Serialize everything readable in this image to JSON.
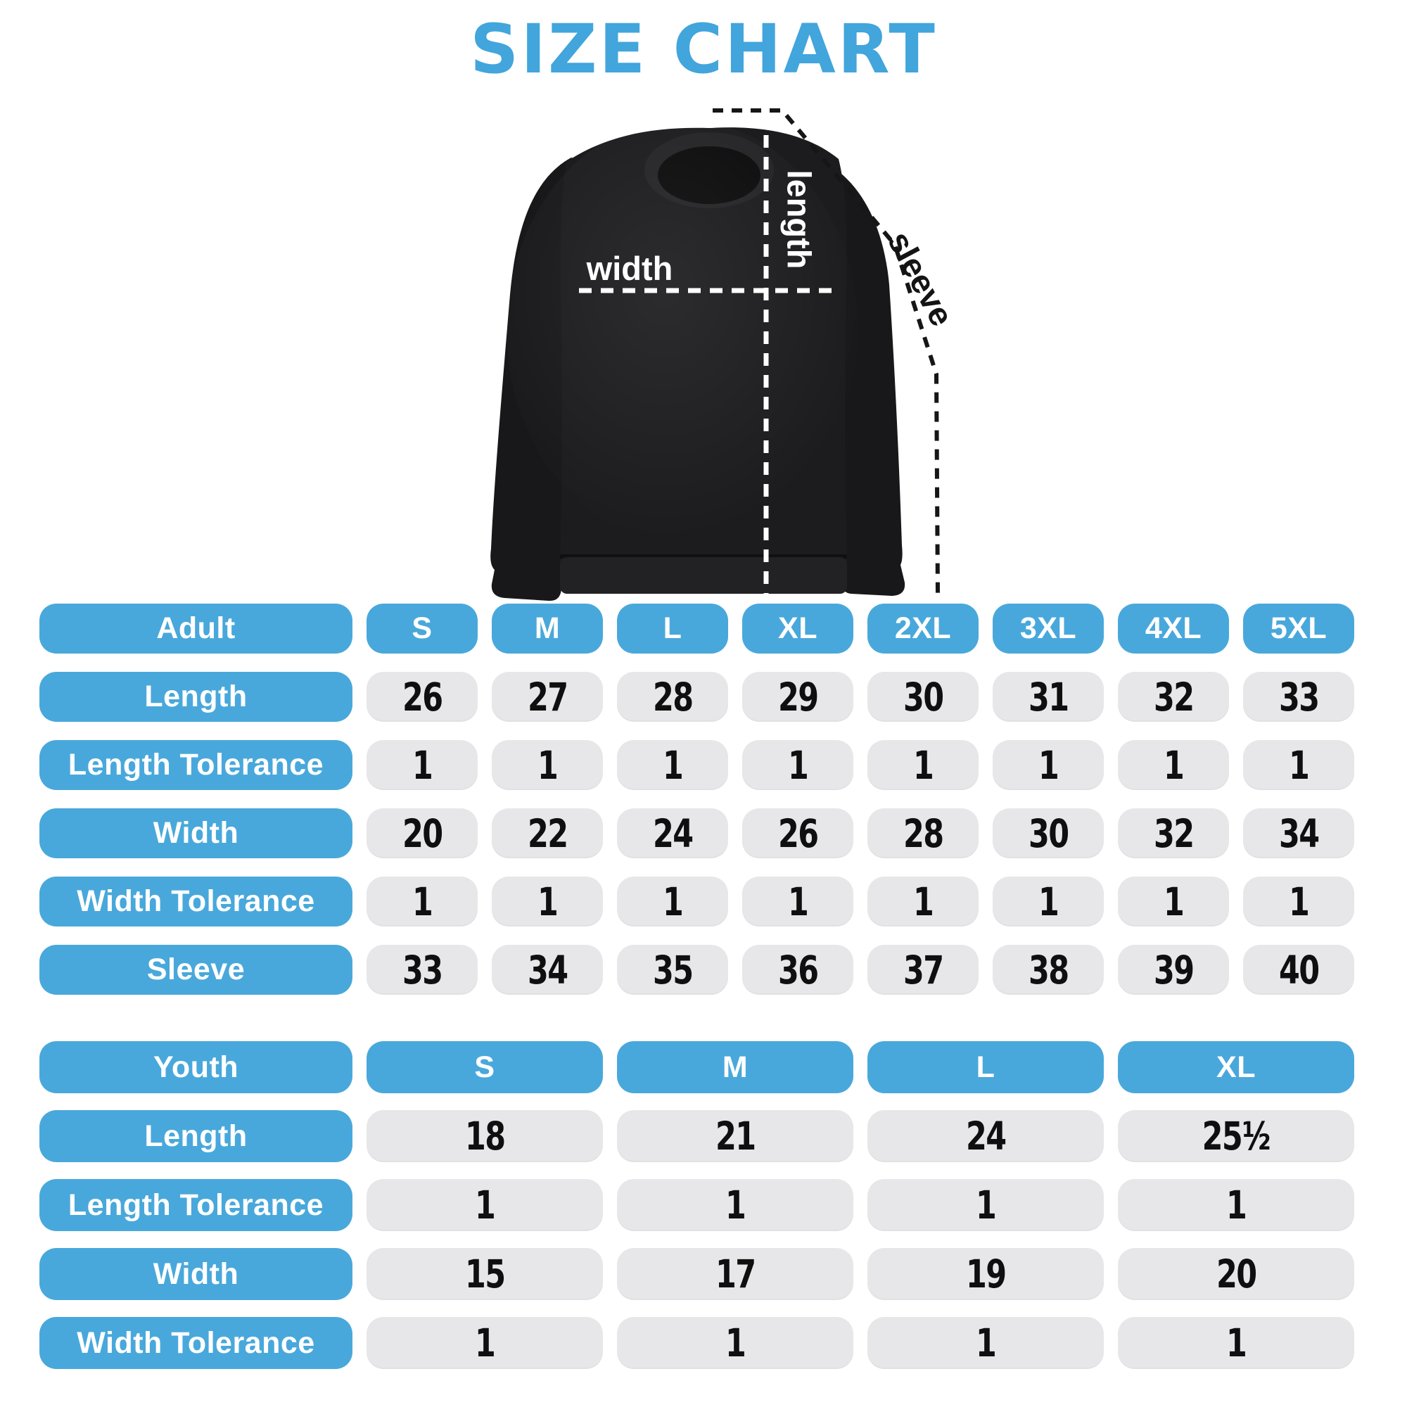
{
  "title": "SIZE CHART",
  "colors": {
    "accent_blue": "#49a8db",
    "title_blue": "#42a5dc",
    "cell_gray": "#e7e7e9",
    "number_black": "#0f0f10",
    "garment_black": "#1c1c1e",
    "background": "#ffffff"
  },
  "figure": {
    "length_label": "length",
    "width_label": "width",
    "sleeve_label": "sleeve"
  },
  "adult_table": {
    "header": [
      "Adult",
      "S",
      "M",
      "L",
      "XL",
      "2XL",
      "3XL",
      "4XL",
      "5XL"
    ],
    "rows": [
      {
        "label": "Length",
        "values": [
          "26",
          "27",
          "28",
          "29",
          "30",
          "31",
          "32",
          "33"
        ]
      },
      {
        "label": "Length Tolerance",
        "values": [
          "1",
          "1",
          "1",
          "1",
          "1",
          "1",
          "1",
          "1"
        ]
      },
      {
        "label": "Width",
        "values": [
          "20",
          "22",
          "24",
          "26",
          "28",
          "30",
          "32",
          "34"
        ]
      },
      {
        "label": "Width Tolerance",
        "values": [
          "1",
          "1",
          "1",
          "1",
          "1",
          "1",
          "1",
          "1"
        ]
      },
      {
        "label": "Sleeve",
        "values": [
          "33",
          "34",
          "35",
          "36",
          "37",
          "38",
          "39",
          "40"
        ]
      }
    ]
  },
  "youth_table": {
    "header": [
      "Youth",
      "S",
      "M",
      "L",
      "XL"
    ],
    "rows": [
      {
        "label": "Length",
        "values": [
          "18",
          "21",
          "24",
          "25¹⁄₂"
        ]
      },
      {
        "label": "Length Tolerance",
        "values": [
          "1",
          "1",
          "1",
          "1"
        ]
      },
      {
        "label": "Width",
        "values": [
          "15",
          "17",
          "19",
          "20"
        ]
      },
      {
        "label": "Width Tolerance",
        "values": [
          "1",
          "1",
          "1",
          "1"
        ]
      }
    ]
  },
  "chart_data": [
    {
      "type": "table",
      "title": "Adult",
      "columns": [
        "Adult",
        "S",
        "M",
        "L",
        "XL",
        "2XL",
        "3XL",
        "4XL",
        "5XL"
      ],
      "rows": [
        [
          "Length",
          26,
          27,
          28,
          29,
          30,
          31,
          32,
          33
        ],
        [
          "Length Tolerance",
          1,
          1,
          1,
          1,
          1,
          1,
          1,
          1
        ],
        [
          "Width",
          20,
          22,
          24,
          26,
          28,
          30,
          32,
          34
        ],
        [
          "Width Tolerance",
          1,
          1,
          1,
          1,
          1,
          1,
          1,
          1
        ],
        [
          "Sleeve",
          33,
          34,
          35,
          36,
          37,
          38,
          39,
          40
        ]
      ]
    },
    {
      "type": "table",
      "title": "Youth",
      "columns": [
        "Youth",
        "S",
        "M",
        "L",
        "XL"
      ],
      "rows": [
        [
          "Length",
          18,
          21,
          24,
          25.5
        ],
        [
          "Length Tolerance",
          1,
          1,
          1,
          1
        ],
        [
          "Width",
          15,
          17,
          19,
          20
        ],
        [
          "Width Tolerance",
          1,
          1,
          1,
          1
        ]
      ]
    }
  ]
}
